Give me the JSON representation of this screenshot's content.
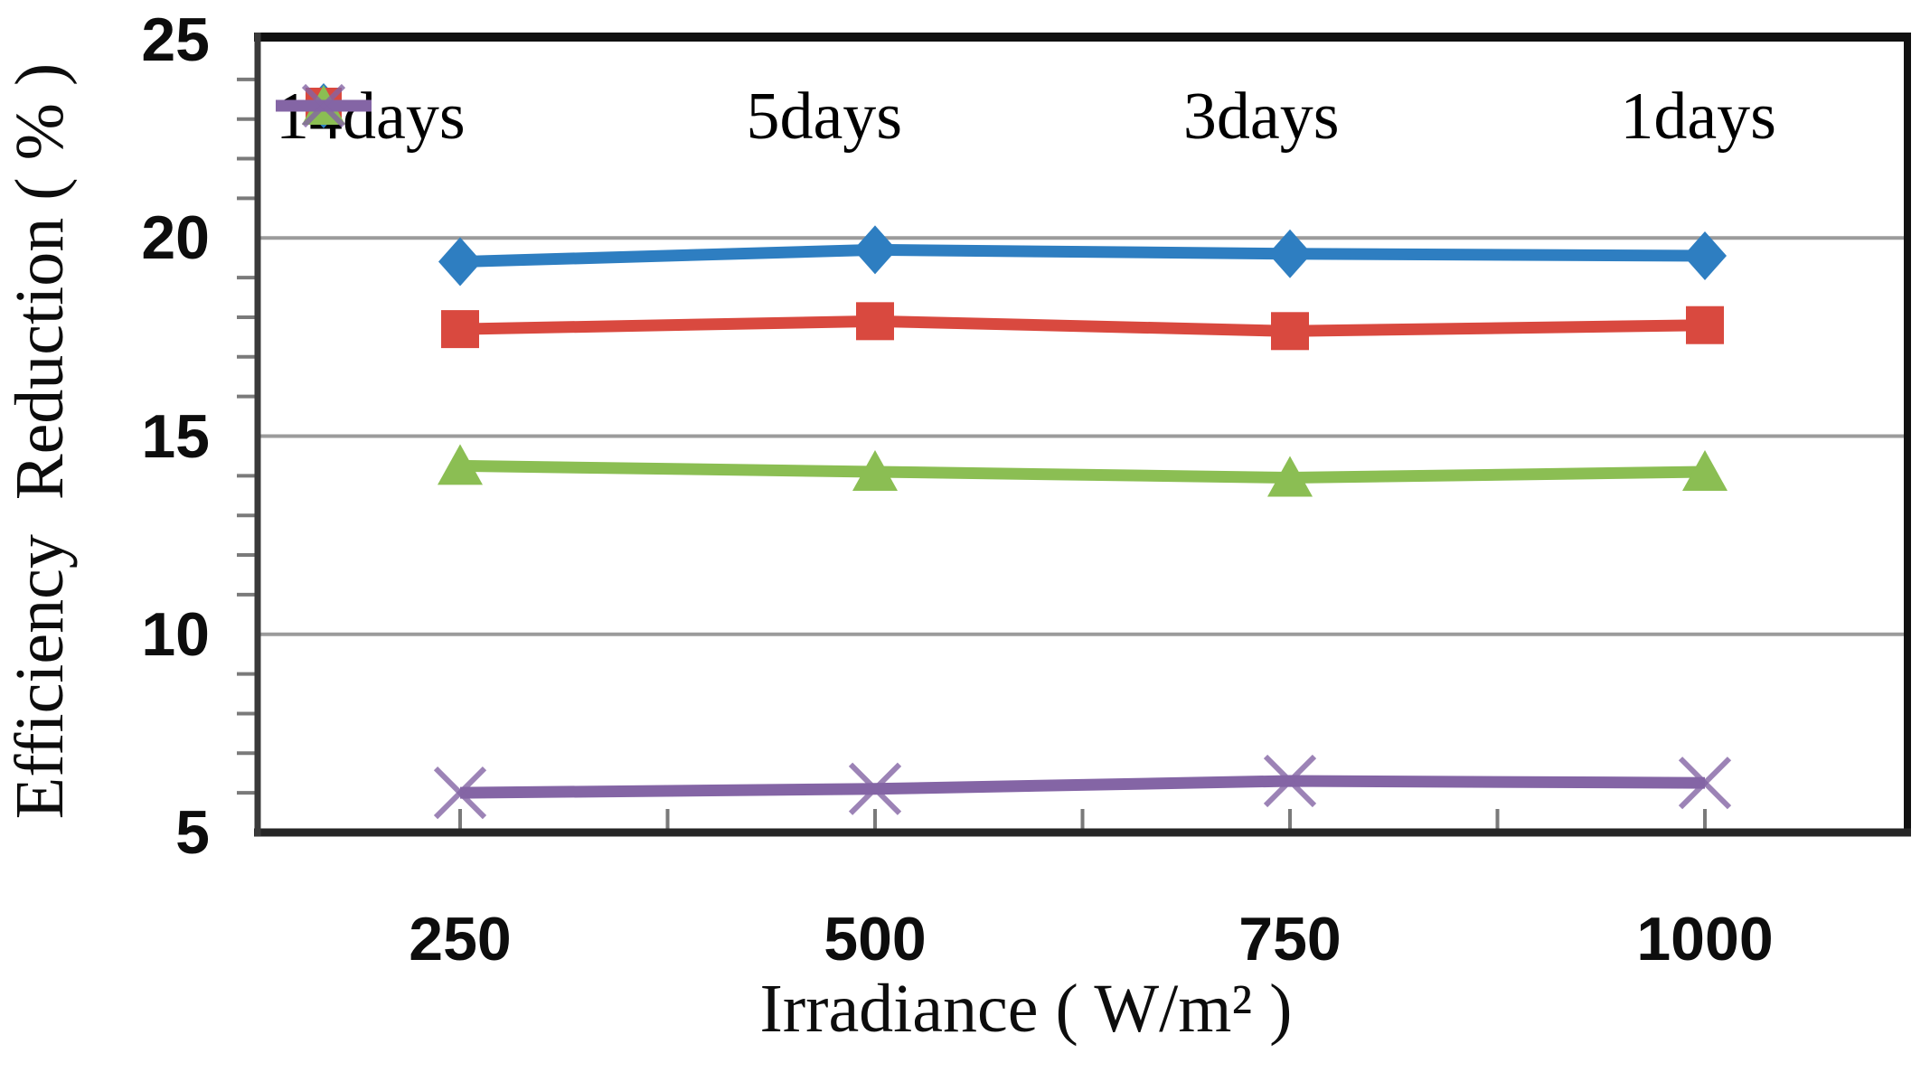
{
  "figure": {
    "background": "#ffffff",
    "border_color": "#1a1a1a",
    "gridline_color": "#9b9b9b",
    "tick_color": "#7a7a7a"
  },
  "chart_data": {
    "type": "line",
    "title": "",
    "xlabel": "Irradiance ( W/m² )",
    "ylabel": "Efficiency  Reduction ( % )",
    "categories": [
      250,
      500,
      750,
      1000
    ],
    "x_tick_labels": [
      "250",
      "500",
      "750",
      "1000"
    ],
    "y_tick_labels": [
      "25",
      "20",
      "15",
      "10",
      "5"
    ],
    "y_tick_values": [
      25,
      20,
      15,
      10,
      5
    ],
    "ylim": [
      5,
      25
    ],
    "minor_y_tick_step": 1,
    "gridline_values": [
      20,
      15,
      10
    ],
    "grid": "horizontal-major",
    "legend_position": "top-inside-row",
    "series": [
      {
        "name": "14days",
        "color": "#2E7EC1",
        "marker": "diamond",
        "values": [
          19.4,
          19.7,
          19.6,
          19.55
        ]
      },
      {
        "name": "5days",
        "color": "#D9493F",
        "marker": "square",
        "values": [
          17.7,
          17.9,
          17.65,
          17.8
        ]
      },
      {
        "name": "3days",
        "color": "#8BBE53",
        "marker": "triangle",
        "values": [
          14.25,
          14.1,
          13.95,
          14.1
        ]
      },
      {
        "name": "1days",
        "color": "#8465A5",
        "marker": "x",
        "values": [
          6.0,
          6.1,
          6.3,
          6.25
        ]
      }
    ]
  }
}
